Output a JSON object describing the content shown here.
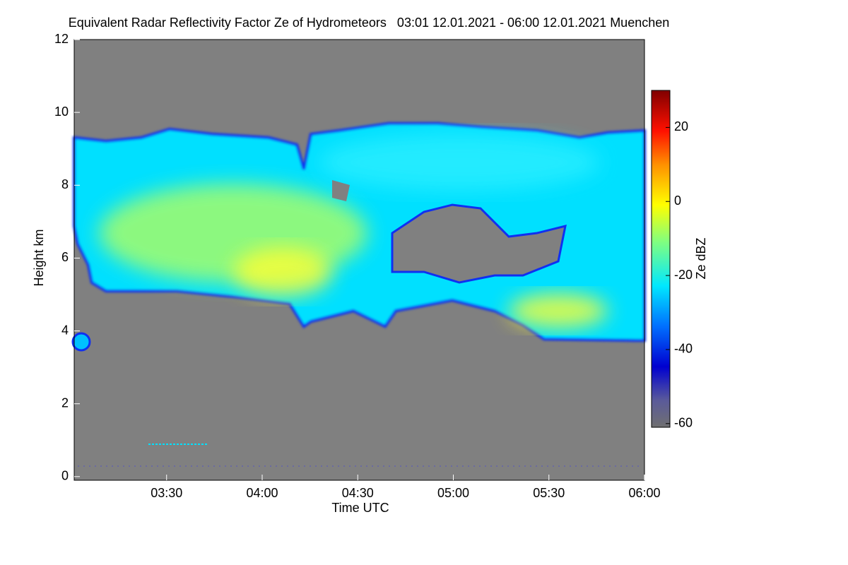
{
  "chart_data": {
    "type": "heatmap",
    "title": "Equivalent Radar Reflectivity Factor Ze of Hydrometeors   03:01 12.01.2021 - 06:00 12.01.2021 Muenchen",
    "x_label": "Time UTC",
    "y_label": "Height km",
    "colorbar_label": "Ze dBZ",
    "xlim": [
      181,
      360
    ],
    "xticks": [
      {
        "value": 210,
        "label": "03:30"
      },
      {
        "value": 240,
        "label": "04:00"
      },
      {
        "value": 270,
        "label": "04:30"
      },
      {
        "value": 300,
        "label": "05:00"
      },
      {
        "value": 330,
        "label": "05:30"
      },
      {
        "value": 360,
        "label": "06:00"
      }
    ],
    "ylim": [
      -0.1,
      12
    ],
    "yticks": [
      0,
      2,
      4,
      6,
      8,
      10,
      12
    ],
    "clim": [
      -61,
      30
    ],
    "cticks": [
      -60,
      -40,
      -20,
      0,
      20
    ]
  }
}
